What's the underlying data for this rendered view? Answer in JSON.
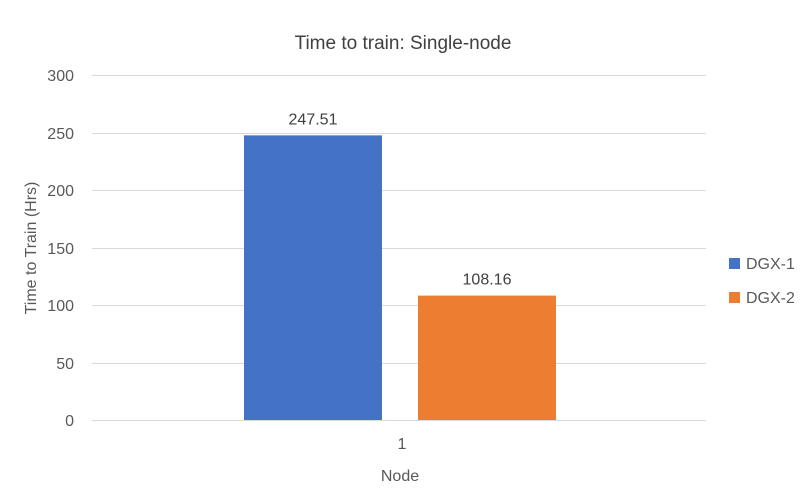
{
  "chart_data": {
    "type": "bar",
    "title": "Time to train: Single-node",
    "xlabel": "Node",
    "ylabel": "Time  to Train (Hrs)",
    "categories": [
      "1"
    ],
    "series": [
      {
        "name": "DGX-1",
        "values": [
          247.51
        ],
        "color": "#4472c4"
      },
      {
        "name": "DGX-2",
        "values": [
          108.16
        ],
        "color": "#ed7d31"
      }
    ],
    "ylim": [
      0,
      300
    ],
    "yticks": [
      0,
      50,
      100,
      150,
      200,
      250,
      300
    ],
    "grid": true,
    "legend_position": "right",
    "show_data_labels": true
  }
}
